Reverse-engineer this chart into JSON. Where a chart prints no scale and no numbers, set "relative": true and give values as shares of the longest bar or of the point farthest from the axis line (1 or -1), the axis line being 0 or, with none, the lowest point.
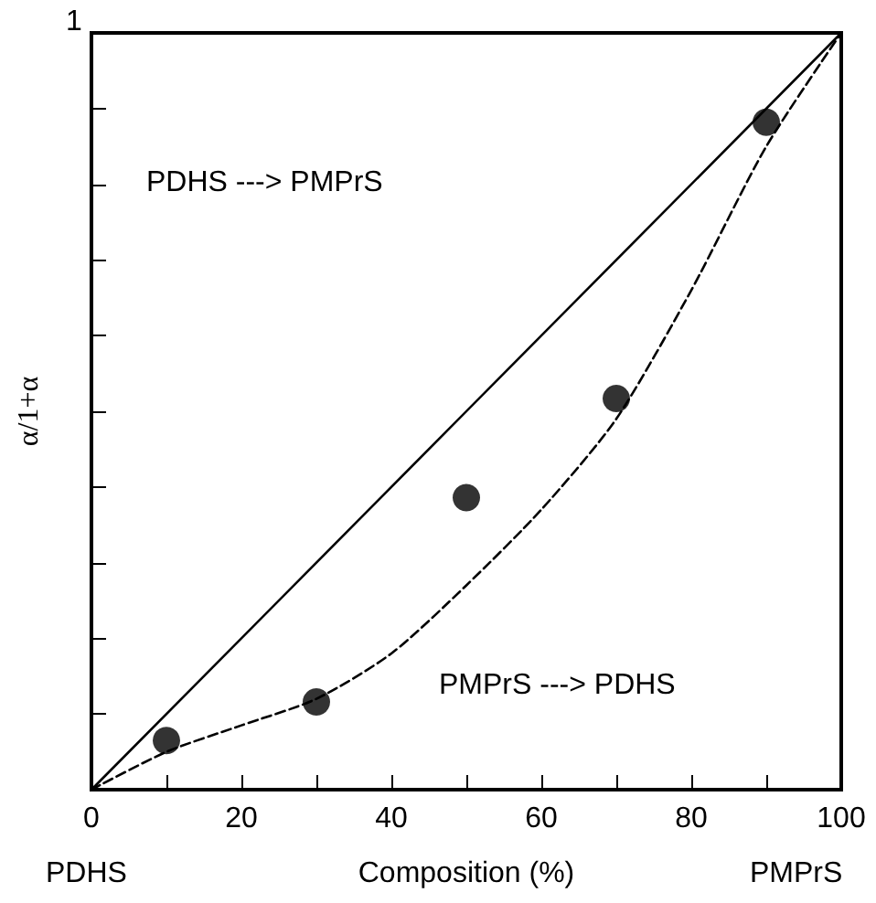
{
  "chart_data": {
    "type": "scatter",
    "xlabel": "Composition (%)",
    "ylabel": "α/1+α",
    "relative": true,
    "xlim": [
      0,
      100
    ],
    "xticks": [
      0,
      {
        "value": 10,
        "label": null
      },
      20,
      {
        "value": 30,
        "label": null
      },
      40,
      {
        "value": 50,
        "label": null
      },
      60,
      {
        "value": 70,
        "label": null
      },
      80,
      {
        "value": 90,
        "label": null
      },
      100
    ],
    "grid": false,
    "series": [
      {
        "type": "line",
        "color": "#000000",
        "x": [
          0,
          100
        ],
        "values": [
          0,
          1
        ],
        "marker": "none",
        "line_style": "solid"
      },
      {
        "type": "line",
        "color": "#000000",
        "x": [
          0,
          10,
          20,
          30,
          40,
          50,
          60,
          70,
          80,
          90,
          100
        ],
        "values": [
          0,
          0.05,
          0.085,
          0.12,
          0.18,
          0.27,
          0.37,
          0.49,
          0.66,
          0.85,
          1
        ],
        "marker": "none",
        "line_style": "dashed"
      },
      {
        "color": "#000000",
        "x": [
          10,
          30,
          50,
          70,
          90
        ],
        "values": [
          0.065,
          0.116,
          0.386,
          0.517,
          0.882
        ],
        "marker": "circle"
      }
    ],
    "annotations": [
      "PDHS ---> PMPrS",
      "PMPrS ---> PDHS",
      "PDHS",
      "PMPrS",
      "1"
    ]
  }
}
